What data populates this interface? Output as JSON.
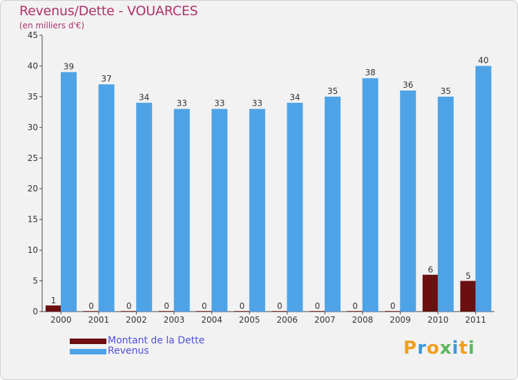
{
  "title": "Revenus/Dette - VOUARCES",
  "subtitle": "(en milliers d'€)",
  "colors": {
    "dette": "#6b0f10",
    "revenus": "#4ea3e6",
    "title": "#b0306a",
    "legend_text": "#5050d8"
  },
  "legend": [
    {
      "label": "Montant de la Dette",
      "color": "#6b0f10"
    },
    {
      "label": "Revenus",
      "color": "#4ea3e6"
    }
  ],
  "logo": {
    "text": "Proxiti",
    "letters": [
      {
        "ch": "P",
        "color": "#f0a020"
      },
      {
        "ch": "r",
        "color": "#3a9ad9"
      },
      {
        "ch": "o",
        "color": "#f0a020"
      },
      {
        "ch": "x",
        "color": "#5cb85c"
      },
      {
        "ch": "i",
        "color": "#3a9ad9"
      },
      {
        "ch": "t",
        "color": "#f0a020"
      },
      {
        "ch": "i",
        "color": "#5cb85c"
      }
    ]
  },
  "chart_data": {
    "type": "bar",
    "title": "Revenus/Dette - VOUARCES",
    "subtitle": "(en milliers d'€)",
    "categories": [
      "2000",
      "2001",
      "2002",
      "2003",
      "2004",
      "2005",
      "2006",
      "2007",
      "2008",
      "2009",
      "2010",
      "2011"
    ],
    "series": [
      {
        "name": "Montant de la Dette",
        "color": "#6b0f10",
        "values": [
          1,
          0,
          0,
          0,
          0,
          0,
          0,
          0,
          0,
          0,
          6,
          5
        ]
      },
      {
        "name": "Revenus",
        "color": "#4ea3e6",
        "values": [
          39,
          37,
          34,
          33,
          33,
          33,
          34,
          35,
          38,
          36,
          35,
          40
        ]
      }
    ],
    "ylim": [
      0,
      45
    ],
    "yticks": [
      0,
      5,
      10,
      15,
      20,
      25,
      30,
      35,
      40,
      45
    ],
    "grid": false,
    "legend_position": "bottom-left",
    "data_labels": true
  }
}
